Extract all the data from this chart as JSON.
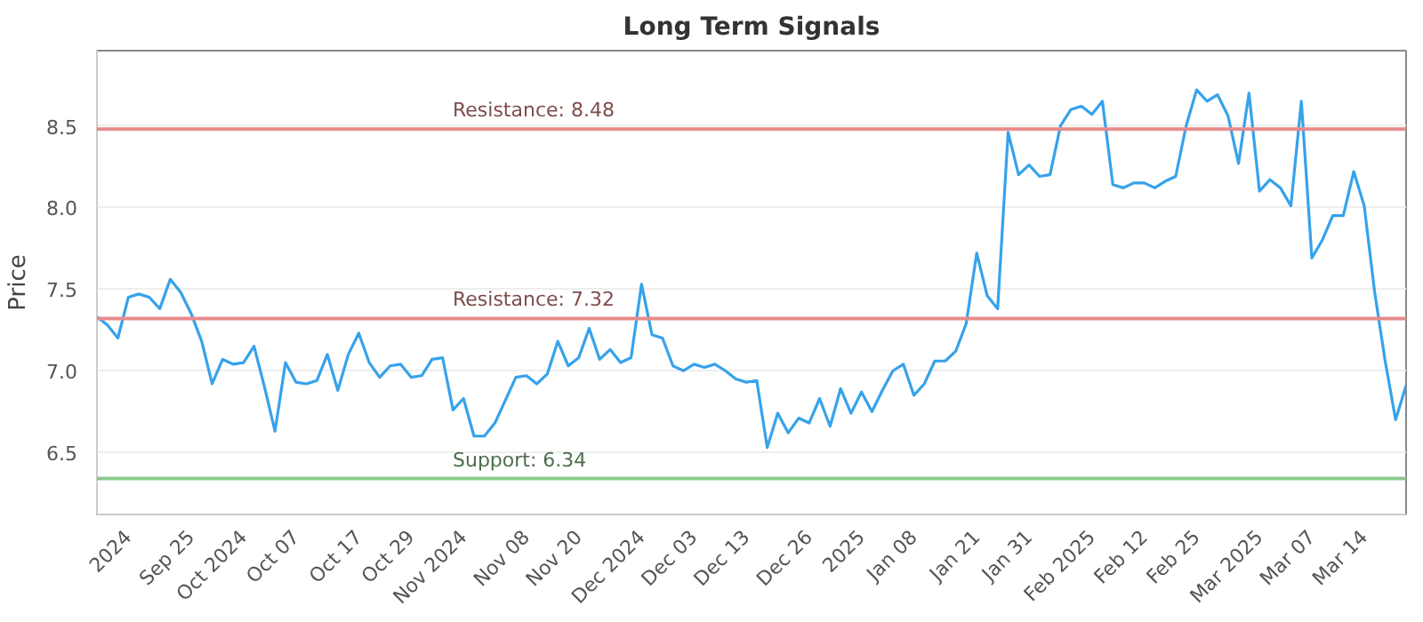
{
  "chart_data": {
    "type": "line",
    "title": "Long Term Signals",
    "ylabel": "Price",
    "categories": [
      null,
      null,
      null,
      "2024",
      null,
      null,
      null,
      null,
      null,
      "Sep 25",
      null,
      null,
      null,
      null,
      "Oct 2024",
      null,
      null,
      null,
      null,
      "Oct 07",
      null,
      null,
      null,
      null,
      null,
      "Oct 17",
      null,
      null,
      null,
      null,
      "Oct 29",
      null,
      null,
      null,
      null,
      "Nov 2024",
      null,
      null,
      null,
      null,
      null,
      "Nov 08",
      null,
      null,
      null,
      null,
      "Nov 20",
      null,
      null,
      null,
      null,
      null,
      "Dec 2024",
      null,
      null,
      null,
      null,
      "Dec 03",
      null,
      null,
      null,
      null,
      "Dec 13",
      null,
      null,
      null,
      null,
      null,
      "Dec 26",
      null,
      null,
      null,
      null,
      "2025",
      null,
      null,
      null,
      null,
      "Jan 08",
      null,
      null,
      null,
      null,
      null,
      "Jan 21",
      null,
      null,
      null,
      null,
      "Jan 31",
      null,
      null,
      null,
      null,
      null,
      "Feb 2025",
      null,
      null,
      null,
      null,
      "Feb 12",
      null,
      null,
      null,
      null,
      "Feb 25",
      null,
      null,
      null,
      null,
      null,
      "Mar 2025",
      null,
      null,
      null,
      null,
      "Mar 07",
      null,
      null,
      null,
      null,
      "Mar 14",
      null,
      null,
      null,
      null
    ],
    "series": [
      {
        "color": "#36a2eb",
        "values": [
          7.33,
          7.28,
          7.2,
          7.45,
          7.47,
          7.45,
          7.38,
          7.56,
          7.48,
          7.35,
          7.18,
          6.92,
          7.07,
          7.04,
          7.05,
          7.15,
          6.9,
          6.63,
          7.05,
          6.93,
          6.92,
          6.94,
          7.1,
          6.88,
          7.1,
          7.23,
          7.05,
          6.96,
          7.03,
          7.04,
          6.96,
          6.97,
          7.07,
          7.08,
          6.76,
          6.83,
          6.6,
          6.6,
          6.68,
          6.82,
          6.96,
          6.97,
          6.92,
          6.98,
          7.18,
          7.03,
          7.08,
          7.26,
          7.07,
          7.13,
          7.05,
          7.08,
          7.53,
          7.22,
          7.2,
          7.03,
          7.0,
          7.04,
          7.02,
          7.04,
          7.0,
          6.95,
          6.93,
          6.94,
          6.53,
          6.74,
          6.62,
          6.71,
          6.68,
          6.83,
          6.66,
          6.89,
          6.74,
          6.87,
          6.75,
          6.88,
          7.0,
          7.04,
          6.85,
          6.92,
          7.06,
          7.06,
          7.12,
          7.29,
          7.72,
          7.46,
          7.38,
          8.46,
          8.2,
          8.26,
          8.19,
          8.2,
          8.5,
          8.6,
          8.62,
          8.57,
          8.65,
          8.14,
          8.12,
          8.15,
          8.15,
          8.12,
          8.16,
          8.19,
          8.5,
          8.72,
          8.65,
          8.69,
          8.56,
          8.27,
          8.7,
          8.1,
          8.17,
          8.12,
          8.01,
          8.65,
          7.69,
          7.8,
          7.95,
          7.95,
          8.22,
          8.01,
          7.48,
          7.06,
          6.7,
          6.91
        ]
      }
    ],
    "ylim": [
      6.12,
      8.96
    ],
    "yticks": [
      6.5,
      {
        "value": 7,
        "label": "7.0"
      },
      7.5,
      {
        "value": 8,
        "label": "8.0"
      },
      8.5
    ],
    "grid": "y",
    "marker": "none",
    "line_style": "solid",
    "ref_lines": [
      {
        "axis": "y",
        "value": 8.48,
        "label": "Resistance: 8.48",
        "color": "#e88b8b"
      },
      {
        "axis": "y",
        "value": 7.32,
        "label": "Resistance: 7.32",
        "color": "#e88b8b"
      },
      {
        "axis": "y",
        "value": 6.34,
        "label": "Support: 6.34",
        "color": "#8cc98c"
      }
    ]
  }
}
